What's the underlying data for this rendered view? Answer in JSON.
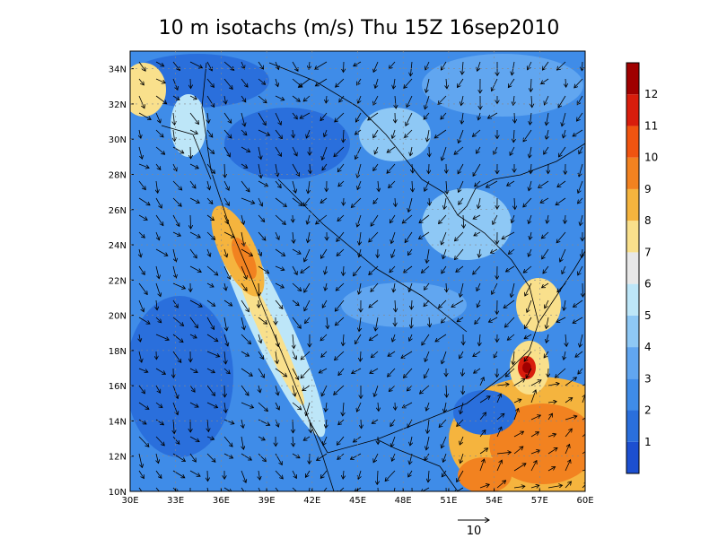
{
  "title": "10 m isotachs (m/s) Thu 15Z 16sep2010",
  "x_axis": {
    "ticks": [
      "30E",
      "33E",
      "36E",
      "39E",
      "42E",
      "45E",
      "48E",
      "51E",
      "54E",
      "57E",
      "60E"
    ]
  },
  "y_axis": {
    "ticks": [
      "10N",
      "12N",
      "14N",
      "16N",
      "18N",
      "20N",
      "22N",
      "24N",
      "26N",
      "28N",
      "30N",
      "32N",
      "34N"
    ]
  },
  "colorbar": {
    "labels": [
      1,
      2,
      3,
      4,
      5,
      6,
      7,
      8,
      9,
      10,
      11,
      12
    ],
    "colors": [
      "#1c4fd0",
      "#2a6fdc",
      "#3f8ce8",
      "#61a6f0",
      "#8ec8f5",
      "#bde6f8",
      "#e8e8e8",
      "#f9e08c",
      "#f5b43e",
      "#f28220",
      "#f05410",
      "#d81d0c",
      "#a00000"
    ]
  },
  "reference_vector": {
    "label": "10"
  }
}
